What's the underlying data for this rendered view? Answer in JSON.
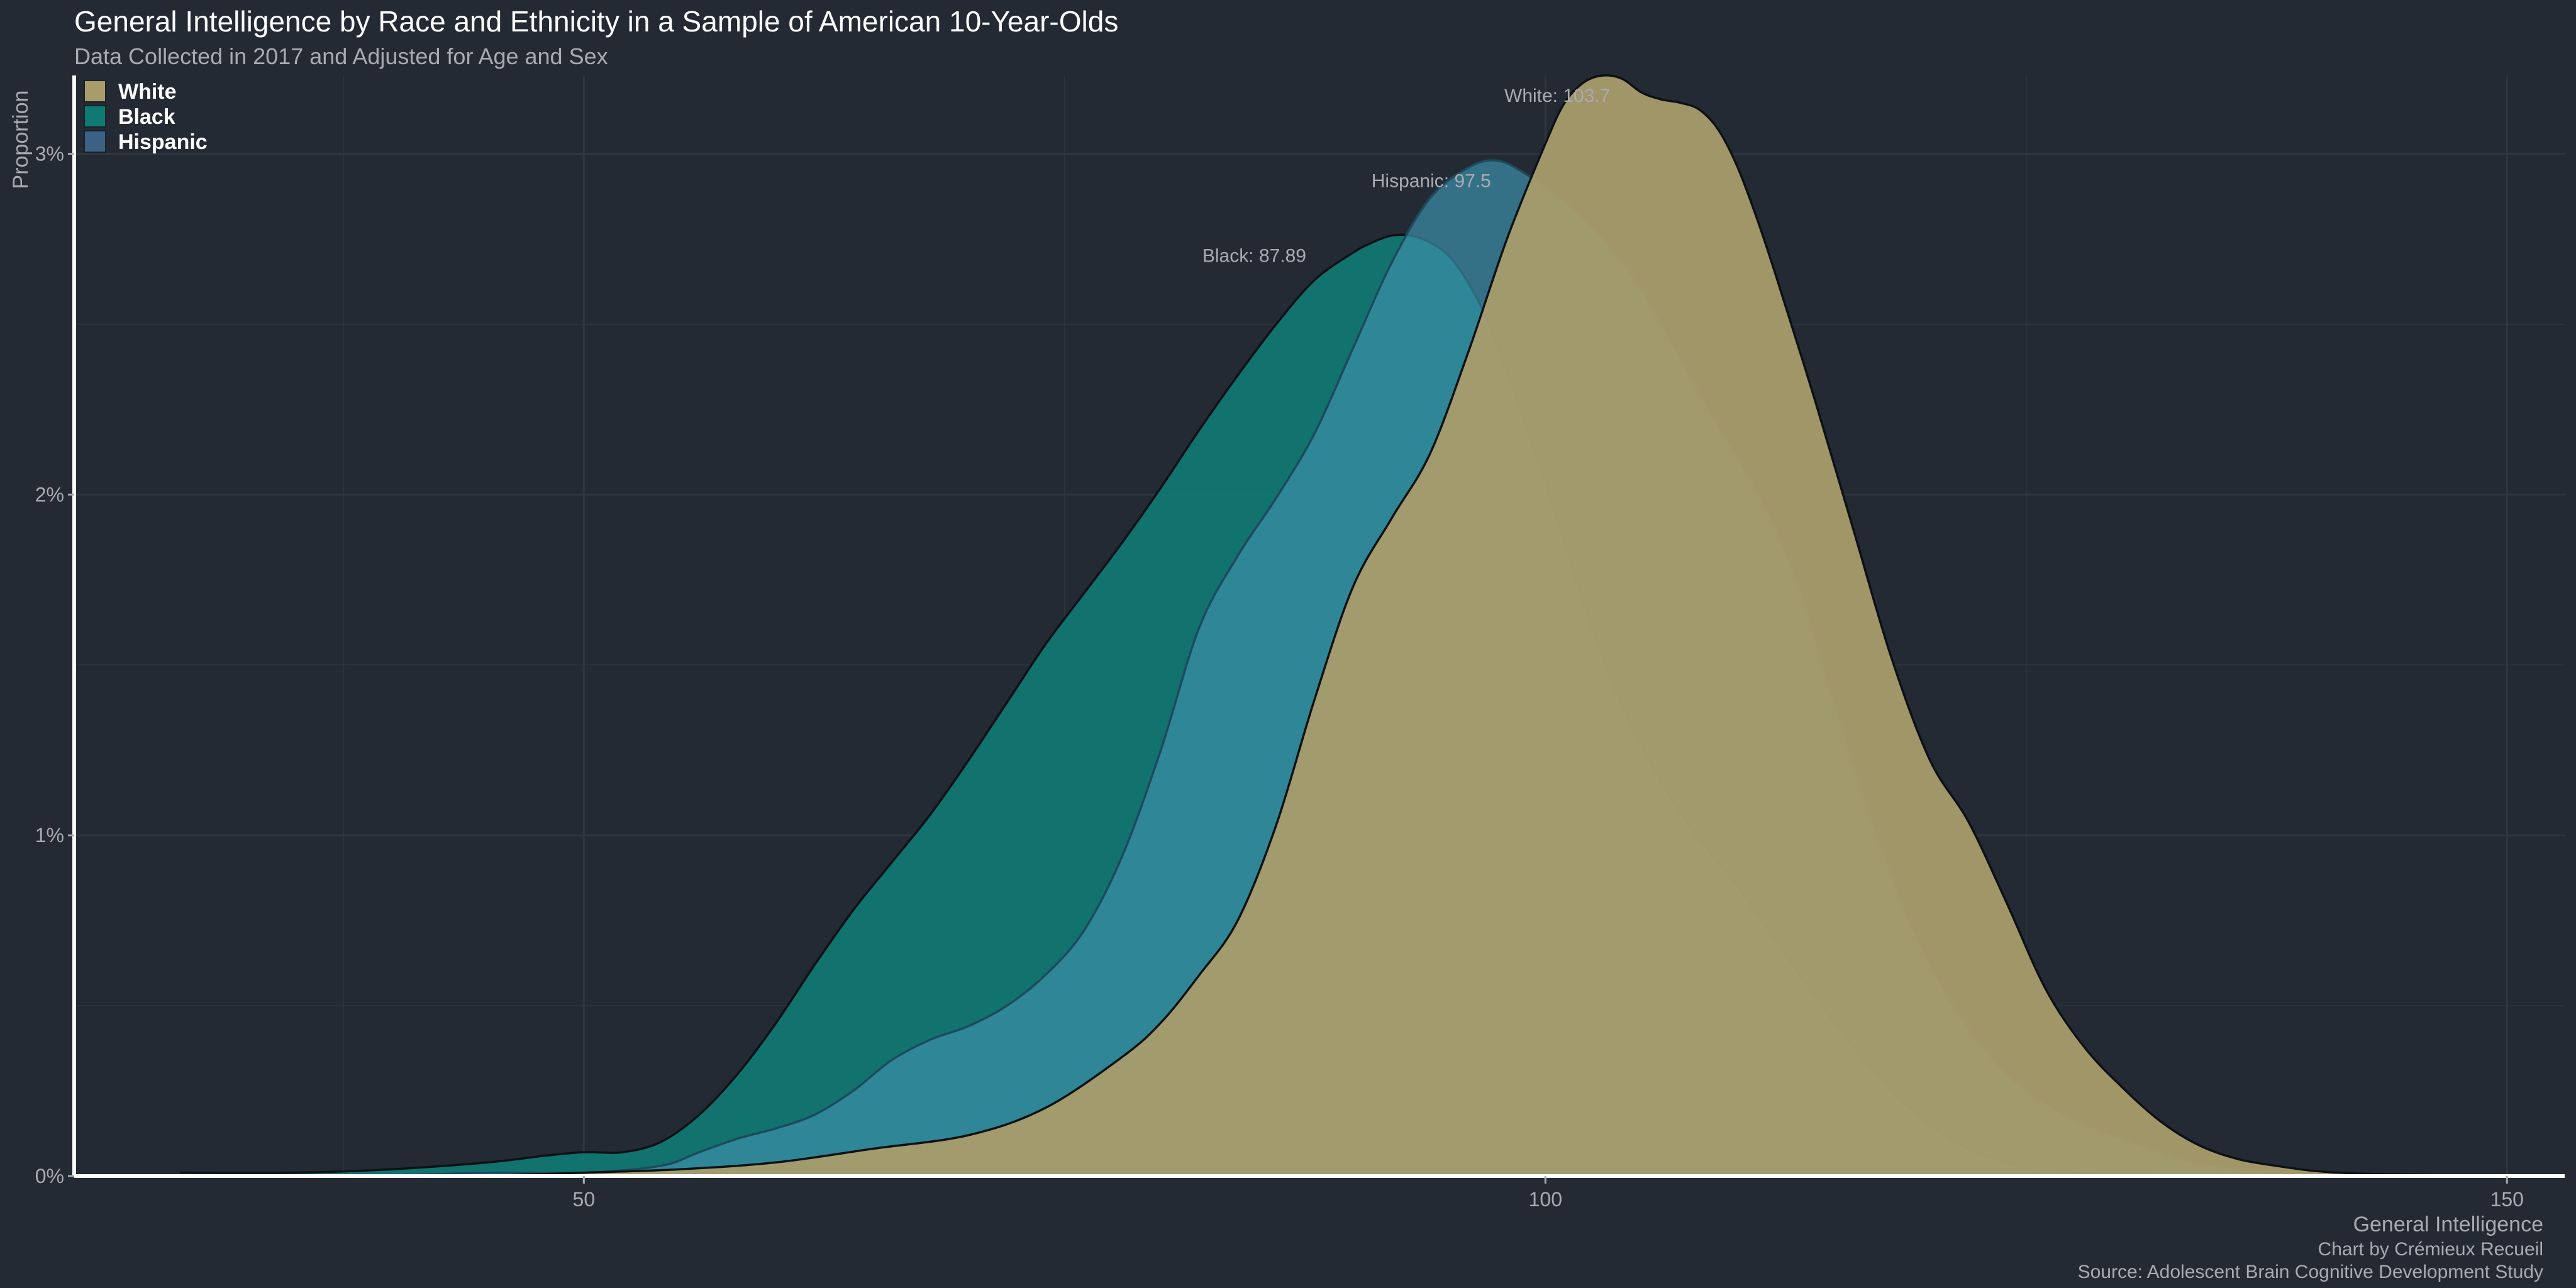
{
  "colors": {
    "background": "#232a33",
    "grid": "#2f3640",
    "axis": "#ffffff",
    "text": "#ffffff",
    "muted": "#a8abb0",
    "white_fill": "#a89c6a",
    "black_fill": "#0f7a74",
    "hispanic_fill": "#3c8da6",
    "outline": "#0d1116"
  },
  "chart_data": {
    "type": "area",
    "title": "General Intelligence by Race and Ethnicity in a Sample of American 10-Year-Olds",
    "subtitle": "Data Collected in 2017 and Adjusted for Age and Sex",
    "xlabel": "General Intelligence",
    "ylabel": "Proportion",
    "xlim": [
      23.5,
      153
    ],
    "ylim": [
      0,
      0.0323
    ],
    "x_ticks": [
      50,
      100,
      150
    ],
    "y_ticks": [
      0,
      0.01,
      0.02,
      0.03
    ],
    "y_tick_labels": [
      "0%",
      "1%",
      "2%",
      "3%"
    ],
    "grid": true,
    "legend_position": "top-left",
    "legend": [
      "White",
      "Black",
      "Hispanic"
    ],
    "caption_lines": [
      "Chart by Crémieux Recueil",
      "Source: Adolescent Brain Cognitive Development Study"
    ],
    "series": [
      {
        "name": "Black",
        "mean_label": "Black: 87.89",
        "label_anchor": [
          87.89,
          0.0276
        ],
        "color": "#0f7a74",
        "x": [
          29,
          35,
          40,
          45,
          48,
          50,
          52,
          54,
          56,
          58,
          60,
          62,
          64,
          66,
          68,
          70,
          72,
          74,
          76,
          78,
          80,
          82,
          84,
          86,
          88,
          90,
          91,
          92,
          93,
          94,
          95,
          96,
          97,
          98,
          100,
          102,
          104,
          106,
          108,
          110,
          112,
          114,
          116,
          118,
          120,
          122,
          124,
          126,
          128,
          130,
          133,
          136,
          140,
          145
        ],
        "y": [
          0.0001,
          0.0001,
          0.0002,
          0.0004,
          0.0006,
          0.0007,
          0.0007,
          0.001,
          0.0018,
          0.003,
          0.0045,
          0.0062,
          0.0078,
          0.0092,
          0.0106,
          0.0122,
          0.0139,
          0.0156,
          0.0171,
          0.0186,
          0.0202,
          0.0219,
          0.0235,
          0.025,
          0.0263,
          0.0271,
          0.0274,
          0.0276,
          0.0276,
          0.0274,
          0.027,
          0.0262,
          0.0251,
          0.0236,
          0.0204,
          0.0168,
          0.0138,
          0.0116,
          0.0099,
          0.0085,
          0.0069,
          0.0053,
          0.0038,
          0.0025,
          0.0015,
          0.0008,
          0.0004,
          0.0002,
          0.0001,
          5e-05,
          2e-05,
          1e-05,
          0,
          0
        ]
      },
      {
        "name": "Hispanic",
        "mean_label": "Hispanic: 97.5",
        "label_anchor": [
          97.5,
          0.0298
        ],
        "color": "#3c8da6",
        "x": [
          40,
          45,
          50,
          54,
          56,
          58,
          60,
          62,
          64,
          66,
          68,
          70,
          72,
          74,
          76,
          78,
          80,
          82,
          84,
          86,
          88,
          90,
          92,
          94,
          96,
          97.5,
          99,
          101,
          103,
          105,
          107,
          109,
          111,
          113,
          115,
          117,
          119,
          121,
          123,
          125,
          127,
          129,
          131,
          133,
          136,
          140,
          145
        ],
        "y": [
          0,
          0.0001,
          0.0001,
          0.0003,
          0.0007,
          0.0011,
          0.0014,
          0.0018,
          0.0025,
          0.0034,
          0.004,
          0.0044,
          0.005,
          0.0059,
          0.0072,
          0.0094,
          0.0125,
          0.0161,
          0.0182,
          0.0199,
          0.0218,
          0.0243,
          0.0268,
          0.0287,
          0.0296,
          0.0298,
          0.0294,
          0.0286,
          0.0275,
          0.026,
          0.024,
          0.022,
          0.0201,
          0.0176,
          0.0139,
          0.0104,
          0.0074,
          0.0052,
          0.0036,
          0.0025,
          0.0018,
          0.0013,
          0.0009,
          0.0005,
          0.0002,
          5e-05,
          0
        ]
      },
      {
        "name": "White",
        "mean_label": "White: 103.7",
        "label_anchor": [
          103.7,
          0.0323
        ],
        "color": "#a89c6a",
        "x": [
          45,
          50,
          55,
          60,
          65,
          70,
          74,
          78,
          80,
          82,
          84,
          86,
          88,
          90,
          92,
          94,
          96,
          98,
          100,
          101,
          102,
          103,
          104,
          105,
          106,
          107,
          108,
          109,
          110,
          111,
          112,
          114,
          116,
          118,
          120,
          122,
          124,
          126,
          128,
          130,
          132,
          134,
          136,
          138,
          140,
          142,
          145,
          148,
          150
        ],
        "y": [
          0,
          0.0001,
          0.0002,
          0.0004,
          0.0008,
          0.0012,
          0.002,
          0.0035,
          0.0045,
          0.0059,
          0.0075,
          0.0103,
          0.014,
          0.0173,
          0.0193,
          0.0212,
          0.0242,
          0.0275,
          0.0303,
          0.0315,
          0.0321,
          0.0323,
          0.0322,
          0.0318,
          0.0316,
          0.0315,
          0.0313,
          0.0307,
          0.0296,
          0.0281,
          0.0264,
          0.0228,
          0.019,
          0.0152,
          0.0122,
          0.0104,
          0.008,
          0.0055,
          0.0038,
          0.0026,
          0.0016,
          0.0009,
          0.0005,
          0.0003,
          0.00015,
          8e-05,
          4e-05,
          1e-05,
          0
        ]
      }
    ]
  }
}
